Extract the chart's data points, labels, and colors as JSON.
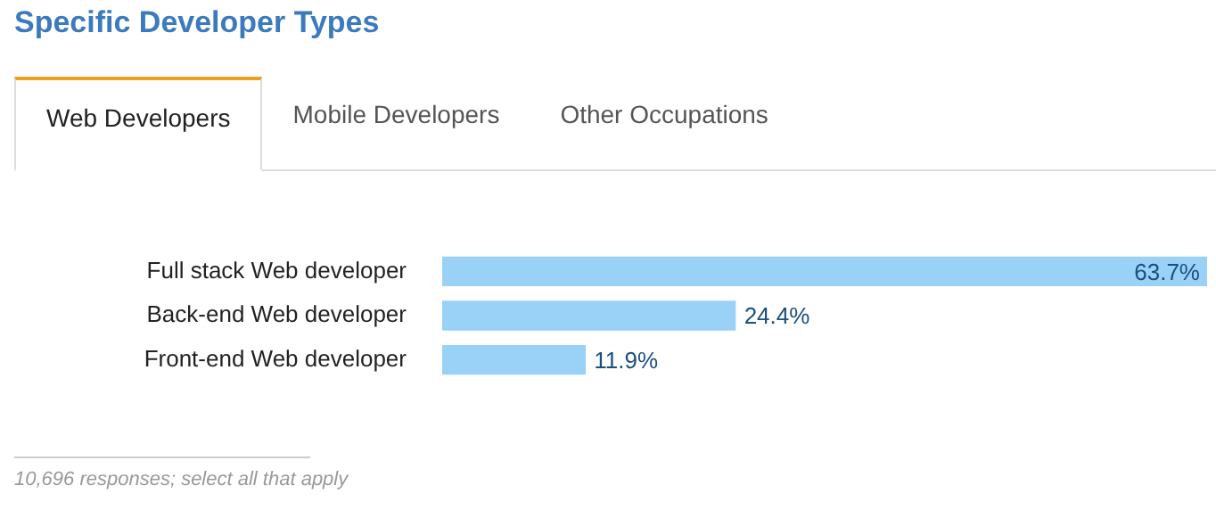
{
  "chart_data": {
    "type": "bar",
    "orientation": "horizontal",
    "title": "Specific Developer Types",
    "categories": [
      "Full stack Web developer",
      "Back-end Web developer",
      "Front-end Web developer"
    ],
    "values": [
      63.7,
      24.4,
      11.9
    ],
    "value_labels": [
      "63.7%",
      "24.4%",
      "11.9%"
    ],
    "color": "#99d1f7",
    "legend": false,
    "tick_labels": "y",
    "annotations": [
      "Web Developers",
      "Mobile Developers",
      "Other Occupations",
      "10,696 responses; select all that apply"
    ]
  }
}
